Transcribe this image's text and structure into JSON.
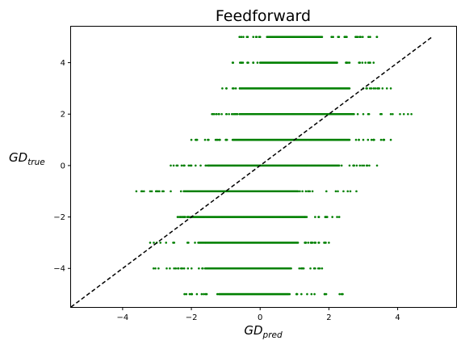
{
  "chart_data": {
    "type": "scatter",
    "title": "Feedforward",
    "xlabel": {
      "main": "GD",
      "sub": "pred"
    },
    "ylabel": {
      "main": "GD",
      "sub": "true"
    },
    "xlim": [
      -5.5,
      5.7
    ],
    "ylim": [
      -5.5,
      5.4
    ],
    "xticks": [
      -4,
      -2,
      0,
      2,
      4
    ],
    "yticks": [
      -4,
      -2,
      0,
      2,
      4
    ],
    "tick_labels": {
      "x": [
        "−4",
        "−2",
        "0",
        "2",
        "4"
      ],
      "y": [
        "−4",
        "−2",
        "0",
        "2",
        "4"
      ]
    },
    "grid": false,
    "marker_color": "#008000",
    "reference_line": {
      "style": "dashed",
      "color": "#000000",
      "points": [
        [
          -5.5,
          -5.5
        ],
        [
          5.0,
          5.0
        ]
      ]
    },
    "rows": [
      {
        "y": 5,
        "x_min": -0.6,
        "x_max": 3.4,
        "x_dense": [
          0.2,
          1.8
        ],
        "outliers": [
          -0.6,
          -0.2,
          0.0,
          2.5,
          2.8,
          3.2,
          3.4
        ]
      },
      {
        "y": 4,
        "x_min": -0.8,
        "x_max": 3.3,
        "x_dense": [
          0.0,
          2.2
        ],
        "outliers": [
          -0.8,
          -0.5,
          2.6,
          2.9,
          3.2,
          3.3
        ]
      },
      {
        "y": 3,
        "x_min": -1.1,
        "x_max": 3.8,
        "x_dense": [
          -0.5,
          2.6
        ],
        "outliers": [
          -1.1,
          -0.8,
          3.0,
          3.3,
          3.8
        ]
      },
      {
        "y": 2,
        "x_min": -1.4,
        "x_max": 4.4,
        "x_dense": [
          -0.6,
          2.7
        ],
        "outliers": [
          -1.4,
          -1.2,
          3.0,
          3.5,
          3.8,
          4.3,
          4.4
        ]
      },
      {
        "y": 1,
        "x_min": -2.0,
        "x_max": 3.8,
        "x_dense": [
          -0.8,
          2.6
        ],
        "outliers": [
          -2.0,
          -1.5,
          -1.0,
          3.0,
          3.3,
          3.6,
          3.8
        ]
      },
      {
        "y": 0,
        "x_min": -2.6,
        "x_max": 3.4,
        "x_dense": [
          -1.5,
          2.3
        ],
        "outliers": [
          -2.6,
          -2.4,
          -2.0,
          2.6,
          2.9,
          3.4
        ]
      },
      {
        "y": -1,
        "x_min": -3.6,
        "x_max": 2.8,
        "x_dense": [
          -2.2,
          1.1
        ],
        "outliers": [
          -3.6,
          -3.2,
          -2.6,
          1.4,
          2.2,
          2.8
        ]
      },
      {
        "y": -2,
        "x_min": -2.4,
        "x_max": 2.3,
        "x_dense": [
          -2.0,
          1.3
        ],
        "outliers": [
          -2.4,
          1.6,
          1.9,
          2.1,
          2.3
        ]
      },
      {
        "y": -3,
        "x_min": -3.2,
        "x_max": 2.0,
        "x_dense": [
          -1.8,
          1.1
        ],
        "outliers": [
          -3.2,
          -2.9,
          -2.5,
          1.3,
          1.7,
          1.9,
          2.0
        ]
      },
      {
        "y": -4,
        "x_min": -3.1,
        "x_max": 1.8,
        "x_dense": [
          -1.6,
          0.9
        ],
        "outliers": [
          -3.1,
          -2.3,
          -2.1,
          1.2,
          1.6,
          1.8
        ]
      },
      {
        "y": -5,
        "x_min": -2.2,
        "x_max": 2.4,
        "x_dense": [
          -1.2,
          0.8
        ],
        "outliers": [
          -2.2,
          -2.0,
          -1.7,
          1.2,
          2.4
        ]
      }
    ]
  }
}
